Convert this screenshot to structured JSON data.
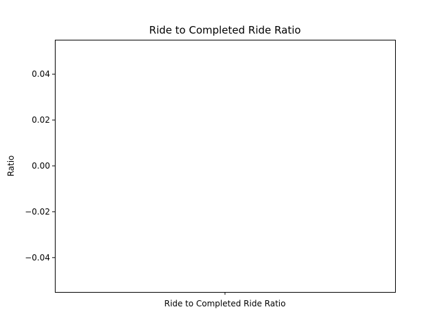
{
  "chart_data": {
    "type": "bar",
    "title": "Ride to Completed Ride Ratio",
    "xlabel": "",
    "ylabel": "Ratio",
    "categories": [
      "Ride to Completed Ride Ratio"
    ],
    "values": [
      null
    ],
    "ylim": [
      -0.055,
      0.055
    ],
    "yticks": [
      -0.04,
      -0.02,
      0.0,
      0.02,
      0.04
    ],
    "ytick_labels": [
      "−0.04",
      "−0.02",
      "0.00",
      "0.02",
      "0.04"
    ],
    "grid": false,
    "legend": "none"
  }
}
